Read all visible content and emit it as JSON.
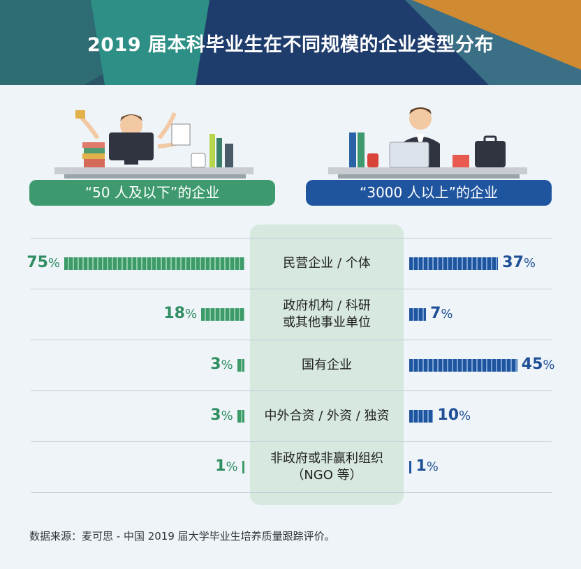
{
  "title": "2019 届本科毕业生在不同规模的企业类型分布",
  "groups": {
    "small": {
      "label": "“50 人及以下”的企业",
      "color": "#3e9a6e"
    },
    "large": {
      "label": "“3000 人以上”的企业",
      "color": "#1f559f"
    }
  },
  "source": "数据来源：麦可思 - 中国 2019 届大学毕业生培养质量跟踪评价。",
  "chart_data": {
    "type": "bar",
    "orientation": "horizontal-diverging",
    "title": "2019 届本科毕业生在不同规模的企业类型分布",
    "unit": "%",
    "categories": [
      "民营企业 / 个体",
      "政府机构 / 科研或其他事业单位",
      "国有企业",
      "中外合资 / 外资 / 独资",
      "非政府或非赢利组织（NGO 等）"
    ],
    "category_lines": [
      [
        "民营企业 / 个体"
      ],
      [
        "政府机构 / 科研",
        "或其他事业单位"
      ],
      [
        "国有企业"
      ],
      [
        "中外合资 / 外资 / 独资"
      ],
      [
        "非政府或非赢利组织",
        "（NGO 等）"
      ]
    ],
    "series": [
      {
        "name": "“50 人及以下”的企业",
        "values": [
          75,
          18,
          3,
          3,
          1
        ],
        "color": "#3e9a6e"
      },
      {
        "name": "“3000 人以上”的企业",
        "values": [
          37,
          7,
          45,
          10,
          1
        ],
        "color": "#1f559f"
      }
    ]
  }
}
